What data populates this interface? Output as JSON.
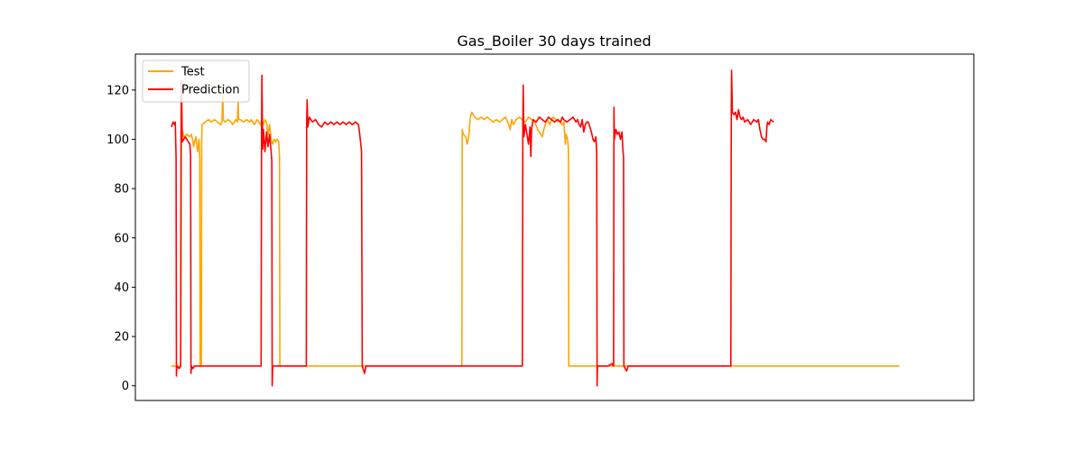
{
  "chart_data": {
    "type": "line",
    "title": "Gas_Boiler 30 days trained",
    "xlabel": "",
    "ylabel": "",
    "x_range": [
      0,
      1000
    ],
    "ylim": [
      -6,
      133
    ],
    "y_ticks": [
      0,
      20,
      40,
      60,
      80,
      100,
      120
    ],
    "x_ticks_visible": false,
    "grid": false,
    "legend_position": "top-left",
    "series": [
      {
        "name": "Test",
        "color": "#FFA500",
        "points": [
          [
            0,
            8
          ],
          [
            8,
            8
          ],
          [
            12,
            8
          ],
          [
            12.5,
            60
          ],
          [
            13,
            123
          ],
          [
            14,
            104
          ],
          [
            16,
            101
          ],
          [
            20,
            102
          ],
          [
            24,
            101
          ],
          [
            26,
            102
          ],
          [
            28,
            99
          ],
          [
            29,
            97
          ],
          [
            30,
            99
          ],
          [
            32,
            101
          ],
          [
            34,
            95
          ],
          [
            36,
            100
          ],
          [
            37,
            92
          ],
          [
            37.5,
            8
          ],
          [
            39,
            8
          ],
          [
            39.5,
            100
          ],
          [
            40,
            106
          ],
          [
            44,
            107
          ],
          [
            48,
            108
          ],
          [
            52,
            107
          ],
          [
            56,
            108
          ],
          [
            60,
            107
          ],
          [
            64,
            106
          ],
          [
            66,
            107
          ],
          [
            67,
            121
          ],
          [
            67.5,
            108
          ],
          [
            70,
            107
          ],
          [
            74,
            108
          ],
          [
            78,
            107
          ],
          [
            80,
            106
          ],
          [
            84,
            108
          ],
          [
            86,
            107
          ],
          [
            87,
            116
          ],
          [
            87.5,
            108
          ],
          [
            90,
            108
          ],
          [
            94,
            107
          ],
          [
            98,
            108
          ],
          [
            102,
            107
          ],
          [
            104,
            108
          ],
          [
            108,
            106
          ],
          [
            112,
            108
          ],
          [
            114,
            107
          ],
          [
            116,
            106
          ],
          [
            118,
            108
          ],
          [
            120,
            106
          ],
          [
            122,
            108
          ],
          [
            124,
            107
          ],
          [
            126,
            102
          ],
          [
            128,
            106
          ],
          [
            130,
            100
          ],
          [
            132,
            98
          ],
          [
            134,
            100
          ],
          [
            136,
            99
          ],
          [
            138,
            100
          ],
          [
            140,
            99
          ],
          [
            141,
            93
          ],
          [
            141.5,
            8
          ],
          [
            160,
            8
          ],
          [
            200,
            8
          ],
          [
            260,
            8
          ],
          [
            320,
            8
          ],
          [
            370,
            8
          ],
          [
            379,
            8
          ],
          [
            379.5,
            104
          ],
          [
            381,
            102
          ],
          [
            384,
            101
          ],
          [
            386,
            98
          ],
          [
            388,
            101
          ],
          [
            390,
            109
          ],
          [
            392,
            111
          ],
          [
            396,
            109
          ],
          [
            400,
            108
          ],
          [
            404,
            109
          ],
          [
            408,
            108
          ],
          [
            412,
            109
          ],
          [
            416,
            108
          ],
          [
            420,
            107
          ],
          [
            424,
            108
          ],
          [
            428,
            107
          ],
          [
            432,
            108
          ],
          [
            436,
            109
          ],
          [
            440,
            106
          ],
          [
            442,
            104
          ],
          [
            444,
            108
          ],
          [
            446,
            106
          ],
          [
            450,
            108
          ],
          [
            454,
            109
          ],
          [
            458,
            108
          ],
          [
            462,
            107
          ],
          [
            466,
            109
          ],
          [
            470,
            108
          ],
          [
            474,
            107
          ],
          [
            478,
            104
          ],
          [
            480,
            103
          ],
          [
            482,
            102
          ],
          [
            484,
            101
          ],
          [
            486,
            104
          ],
          [
            488,
            106
          ],
          [
            490,
            108
          ],
          [
            492,
            107
          ],
          [
            494,
            106
          ],
          [
            496,
            108
          ],
          [
            498,
            109
          ],
          [
            502,
            108
          ],
          [
            506,
            107
          ],
          [
            510,
            106
          ],
          [
            512,
            107
          ],
          [
            513,
            103
          ],
          [
            514,
            98
          ],
          [
            515,
            102
          ],
          [
            517,
            100
          ],
          [
            518,
            96
          ],
          [
            518.5,
            8
          ],
          [
            540,
            8
          ],
          [
            600,
            8
          ],
          [
            660,
            8
          ],
          [
            720,
            8
          ],
          [
            780,
            8
          ],
          [
            840,
            8
          ],
          [
            900,
            8
          ],
          [
            950,
            8
          ]
        ]
      },
      {
        "name": "Prediction",
        "color": "#FF0000",
        "points": [
          [
            0,
            105
          ],
          [
            2,
            107
          ],
          [
            4,
            106
          ],
          [
            5,
            107
          ],
          [
            6,
            93
          ],
          [
            6.5,
            4
          ],
          [
            7,
            8
          ],
          [
            10,
            7
          ],
          [
            12,
            8
          ],
          [
            12.5,
            100
          ],
          [
            13,
            124
          ],
          [
            14,
            99
          ],
          [
            16,
            100
          ],
          [
            18,
            101
          ],
          [
            20,
            100
          ],
          [
            22,
            99
          ],
          [
            24,
            98
          ],
          [
            25,
            93
          ],
          [
            25.5,
            5
          ],
          [
            26,
            8
          ],
          [
            28,
            7
          ],
          [
            30,
            8
          ],
          [
            40,
            8
          ],
          [
            60,
            8
          ],
          [
            80,
            8
          ],
          [
            100,
            8
          ],
          [
            117,
            8
          ],
          [
            117.5,
            100
          ],
          [
            118,
            126
          ],
          [
            119,
            96
          ],
          [
            120,
            104
          ],
          [
            122,
            95
          ],
          [
            124,
            103
          ],
          [
            126,
            97
          ],
          [
            128,
            102
          ],
          [
            130,
            95
          ],
          [
            131,
            91
          ],
          [
            131.5,
            0
          ],
          [
            132,
            8
          ],
          [
            135,
            8
          ],
          [
            145,
            8
          ],
          [
            160,
            8
          ],
          [
            175,
            8
          ],
          [
            176,
            8
          ],
          [
            176.5,
            106
          ],
          [
            177,
            116
          ],
          [
            178,
            105
          ],
          [
            180,
            109
          ],
          [
            184,
            107
          ],
          [
            188,
            108
          ],
          [
            192,
            106
          ],
          [
            196,
            105
          ],
          [
            200,
            107
          ],
          [
            204,
            106
          ],
          [
            208,
            107
          ],
          [
            212,
            106
          ],
          [
            216,
            107
          ],
          [
            220,
            106
          ],
          [
            224,
            107
          ],
          [
            228,
            106
          ],
          [
            232,
            107
          ],
          [
            236,
            106
          ],
          [
            240,
            107
          ],
          [
            244,
            106
          ],
          [
            246,
            101
          ],
          [
            248,
            95
          ],
          [
            249,
            8
          ],
          [
            252,
            5
          ],
          [
            254,
            8
          ],
          [
            260,
            8
          ],
          [
            300,
            8
          ],
          [
            350,
            8
          ],
          [
            400,
            8
          ],
          [
            450,
            8
          ],
          [
            458,
            8
          ],
          [
            458.5,
            104
          ],
          [
            459,
            122
          ],
          [
            460,
            101
          ],
          [
            462,
            106
          ],
          [
            464,
            102
          ],
          [
            466,
            98
          ],
          [
            468,
            105
          ],
          [
            469,
            93
          ],
          [
            470,
            104
          ],
          [
            472,
            108
          ],
          [
            476,
            107
          ],
          [
            480,
            109
          ],
          [
            484,
            108
          ],
          [
            488,
            107
          ],
          [
            492,
            109
          ],
          [
            496,
            108
          ],
          [
            500,
            107
          ],
          [
            504,
            108
          ],
          [
            508,
            107
          ],
          [
            510,
            109
          ],
          [
            512,
            108
          ],
          [
            516,
            107
          ],
          [
            520,
            108
          ],
          [
            524,
            109
          ],
          [
            526,
            108
          ],
          [
            528,
            107
          ],
          [
            530,
            108
          ],
          [
            532,
            106
          ],
          [
            534,
            105
          ],
          [
            536,
            108
          ],
          [
            538,
            103
          ],
          [
            540,
            106
          ],
          [
            542,
            107
          ],
          [
            544,
            107
          ],
          [
            546,
            105
          ],
          [
            548,
            103
          ],
          [
            550,
            100
          ],
          [
            552,
            99
          ],
          [
            554,
            101
          ],
          [
            555,
            94
          ],
          [
            555.5,
            0
          ],
          [
            556,
            8
          ],
          [
            560,
            8
          ],
          [
            570,
            8
          ],
          [
            575,
            9
          ],
          [
            577,
            8
          ],
          [
            577.5,
            113
          ],
          [
            578,
            100
          ],
          [
            580,
            104
          ],
          [
            582,
            102
          ],
          [
            584,
            103
          ],
          [
            586,
            100
          ],
          [
            588,
            103
          ],
          [
            589,
            96
          ],
          [
            590,
            93
          ],
          [
            590.5,
            8
          ],
          [
            592,
            7
          ],
          [
            594,
            6
          ],
          [
            596,
            8
          ],
          [
            600,
            8
          ],
          [
            650,
            8
          ],
          [
            700,
            8
          ],
          [
            725,
            8
          ],
          [
            730,
            8
          ],
          [
            730.5,
            100
          ],
          [
            731,
            128
          ],
          [
            732,
            111
          ],
          [
            734,
            110
          ],
          [
            736,
            111
          ],
          [
            738,
            108
          ],
          [
            740,
            112
          ],
          [
            742,
            109
          ],
          [
            744,
            108
          ],
          [
            746,
            109
          ],
          [
            748,
            107
          ],
          [
            752,
            108
          ],
          [
            756,
            106
          ],
          [
            760,
            108
          ],
          [
            764,
            107
          ],
          [
            766,
            108
          ],
          [
            768,
            104
          ],
          [
            770,
            101
          ],
          [
            772,
            100
          ],
          [
            774,
            100
          ],
          [
            776,
            99
          ],
          [
            777,
            105
          ],
          [
            778,
            107
          ],
          [
            780,
            106
          ],
          [
            782,
            108
          ],
          [
            786,
            107
          ]
        ]
      }
    ]
  }
}
